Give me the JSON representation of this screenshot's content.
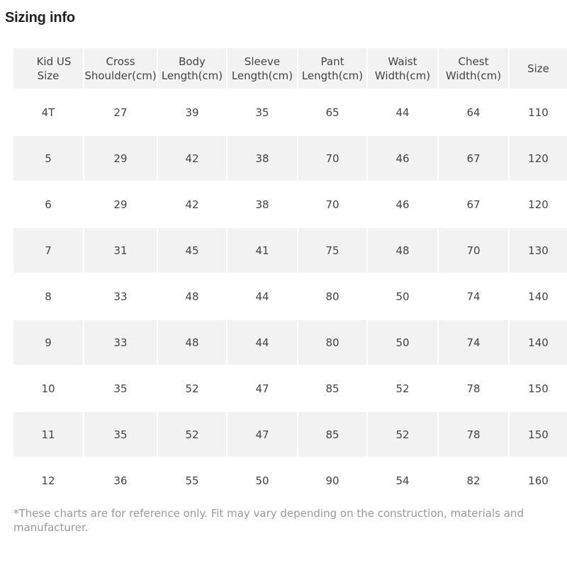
{
  "title": "Sizing info",
  "headers": [
    [
      "Kid US",
      "Size"
    ],
    [
      "Cross",
      "Shoulder(cm)"
    ],
    [
      "Body",
      "Length(cm)"
    ],
    [
      "Sleeve",
      "Length(cm)"
    ],
    [
      "Pant",
      "Length(cm)"
    ],
    [
      "Waist",
      "Width(cm)"
    ],
    [
      "Chest",
      "Width(cm)"
    ],
    [
      "Size"
    ]
  ],
  "rows": [
    [
      "4T",
      "27",
      "39",
      "35",
      "65",
      "44",
      "64",
      "110"
    ],
    [
      "5",
      "29",
      "42",
      "38",
      "70",
      "46",
      "67",
      "120"
    ],
    [
      "6",
      "29",
      "42",
      "38",
      "70",
      "46",
      "67",
      "120"
    ],
    [
      "7",
      "31",
      "45",
      "41",
      "75",
      "48",
      "70",
      "130"
    ],
    [
      "8",
      "33",
      "48",
      "44",
      "80",
      "50",
      "74",
      "140"
    ],
    [
      "9",
      "33",
      "48",
      "44",
      "80",
      "50",
      "74",
      "140"
    ],
    [
      "10",
      "35",
      "52",
      "47",
      "85",
      "52",
      "78",
      "150"
    ],
    [
      "11",
      "35",
      "52",
      "47",
      "85",
      "52",
      "78",
      "150"
    ],
    [
      "12",
      "36",
      "55",
      "50",
      "90",
      "54",
      "82",
      "160"
    ]
  ],
  "footnote": "*These charts are for reference only. Fit may vary depending on the construction, materials and manufacturer.",
  "colors": {
    "shaded_row": "#f2f2f2",
    "text": "#444444",
    "footnote_text": "#9a9a9a"
  }
}
